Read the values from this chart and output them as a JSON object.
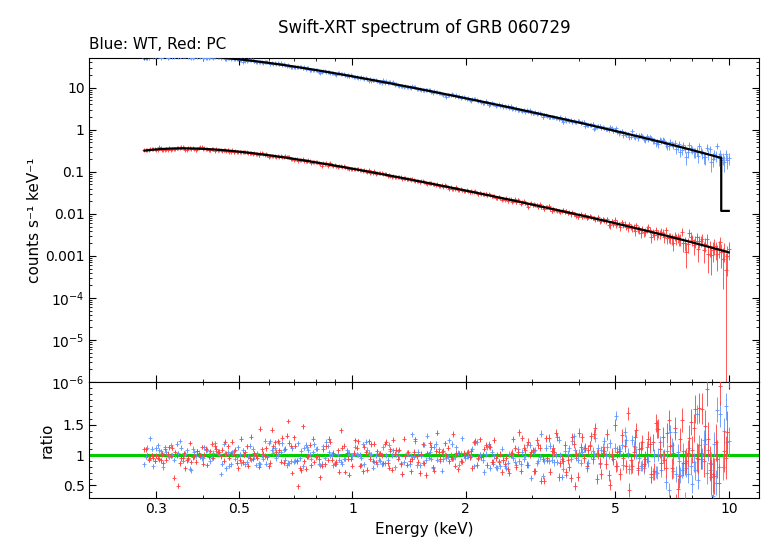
{
  "title": "Swift-XRT spectrum of GRB 060729",
  "subtitle": "Blue: WT, Red: PC",
  "xlabel": "Energy (keV)",
  "ylabel": "counts s⁻¹ keV⁻¹",
  "ylabel_ratio": "ratio",
  "xlim": [
    0.2,
    12.0
  ],
  "ylim_main": [
    1e-06,
    50.0
  ],
  "ylim_ratio": [
    0.3,
    2.2
  ],
  "wt_color": "#6699ff",
  "pc_color": "#ff4444",
  "model_color": "black",
  "ratio_line_color": "#00cc00",
  "background_color": "white",
  "wt_emin": 0.28,
  "wt_emax": 10.0,
  "pc_emin": 0.28,
  "pc_emax": 10.0,
  "n_wt": 400,
  "n_pc": 400
}
